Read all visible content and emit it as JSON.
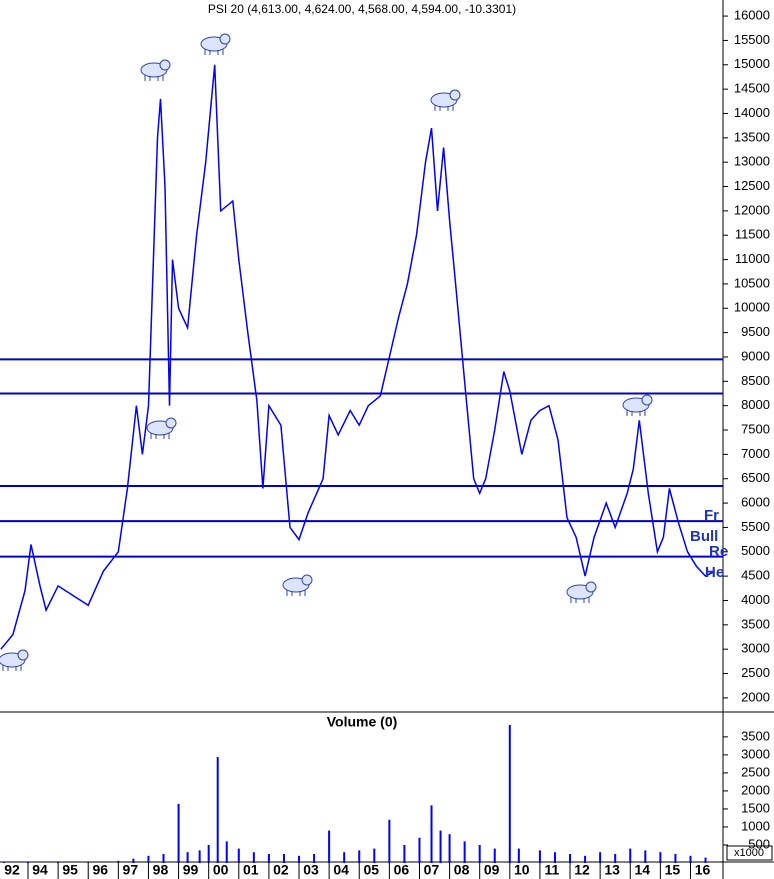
{
  "chart_data": [
    {
      "type": "line",
      "title": "PSI 20 (4,613.00, 4,624.00, 4,568.00, 4,594.00, -10.3301)",
      "x": [
        1993.1,
        1993.5,
        1993.9,
        1994.1,
        1994.4,
        1994.6,
        1995.0,
        1995.5,
        1996.0,
        1996.5,
        1997.0,
        1997.3,
        1997.6,
        1997.8,
        1998.0,
        1998.3,
        1998.4,
        1998.55,
        1998.7,
        1998.8,
        1999.0,
        1999.3,
        1999.6,
        1999.9,
        2000.2,
        2000.4,
        2000.8,
        2001.0,
        2001.3,
        2001.6,
        2001.8,
        2002.0,
        2002.4,
        2002.7,
        2003.0,
        2003.3,
        2003.8,
        2004.0,
        2004.3,
        2004.7,
        2005.0,
        2005.3,
        2005.7,
        2006.0,
        2006.3,
        2006.6,
        2006.9,
        2007.2,
        2007.4,
        2007.6,
        2007.8,
        2008.0,
        2008.2,
        2008.5,
        2008.8,
        2009.0,
        2009.2,
        2009.5,
        2009.8,
        2010.0,
        2010.4,
        2010.7,
        2011.0,
        2011.3,
        2011.6,
        2011.9,
        2012.2,
        2012.5,
        2012.8,
        2013.2,
        2013.5,
        2013.9,
        2014.1,
        2014.3,
        2014.6,
        2014.9,
        2015.1,
        2015.3,
        2015.6,
        2015.9,
        2016.2,
        2016.5,
        2016.8
      ],
      "values": [
        3000,
        3300,
        4200,
        5150,
        4300,
        3800,
        4300,
        4100,
        3900,
        4600,
        5000,
        6300,
        8000,
        7000,
        8000,
        13500,
        14300,
        12500,
        8000,
        11000,
        10000,
        9600,
        11500,
        13000,
        15000,
        12000,
        12200,
        11000,
        9500,
        8100,
        6300,
        8000,
        7600,
        5500,
        5250,
        5800,
        6500,
        7800,
        7400,
        7900,
        7600,
        8000,
        8200,
        9000,
        9800,
        10500,
        11500,
        13000,
        13700,
        12000,
        13300,
        11800,
        10500,
        8500,
        6500,
        6200,
        6500,
        7500,
        8700,
        8300,
        7000,
        7700,
        7900,
        8000,
        7300,
        5700,
        5300,
        4500,
        5300,
        6000,
        5500,
        6200,
        6700,
        7700,
        6200,
        5000,
        5300,
        6300,
        5600,
        5000,
        4700,
        4500,
        4600
      ],
      "color": "#0000ff",
      "hlines": [
        8950,
        8250,
        6350,
        5630,
        4900
      ],
      "annotations": [
        "Fr",
        "Bull",
        "Re",
        "He"
      ],
      "ylim": [
        1710,
        16330
      ],
      "yticks": [
        2000,
        2500,
        3000,
        3500,
        4000,
        4500,
        5000,
        5500,
        6000,
        6500,
        7000,
        7500,
        8000,
        8500,
        9000,
        9500,
        10000,
        10500,
        11000,
        11500,
        12000,
        12500,
        13000,
        13500,
        14000,
        14500,
        15000,
        15500,
        16000
      ],
      "xlim": [
        1993.07,
        2017.08
      ]
    },
    {
      "type": "bar",
      "title": "Volume (0)",
      "x": [
        1993.2,
        1994.0,
        1995.0,
        1996.0,
        1997.0,
        1997.5,
        1998.0,
        1998.5,
        1999.0,
        1999.3,
        1999.7,
        2000.0,
        2000.3,
        2000.6,
        2001.0,
        2001.5,
        2002.0,
        2002.5,
        2003.0,
        2003.5,
        2004.0,
        2004.5,
        2005.0,
        2005.5,
        2006.0,
        2006.5,
        2007.0,
        2007.4,
        2007.7,
        2008.0,
        2008.5,
        2009.0,
        2009.5,
        2010.0,
        2010.3,
        2011.0,
        2011.5,
        2012.0,
        2012.5,
        2013.0,
        2013.5,
        2014.0,
        2014.5,
        2015.0,
        2015.5,
        2016.0,
        2016.5
      ],
      "values": [
        20,
        40,
        30,
        40,
        60,
        120,
        200,
        250,
        1640,
        300,
        350,
        500,
        2940,
        600,
        400,
        300,
        250,
        250,
        200,
        250,
        900,
        300,
        350,
        400,
        1200,
        500,
        700,
        1600,
        900,
        800,
        600,
        500,
        400,
        3830,
        400,
        350,
        300,
        250,
        200,
        300,
        250,
        400,
        350,
        300,
        250,
        200,
        150
      ],
      "color": "#0000ff",
      "unit_label": "x1000",
      "ylim": [
        0,
        4190
      ],
      "yticks": [
        500,
        1000,
        1500,
        2000,
        2500,
        3000,
        3500
      ],
      "xlim": [
        1993.07,
        2017.08
      ],
      "xticks": [
        {
          "value": 1992,
          "label": "92"
        },
        {
          "value": 1994,
          "label": "94"
        },
        {
          "value": 1995,
          "label": "95"
        },
        {
          "value": 1996,
          "label": "96"
        },
        {
          "value": 1997,
          "label": "97"
        },
        {
          "value": 1998,
          "label": "98"
        },
        {
          "value": 1999,
          "label": "99"
        },
        {
          "value": 2000,
          "label": "00"
        },
        {
          "value": 2001,
          "label": "01"
        },
        {
          "value": 2002,
          "label": "02"
        },
        {
          "value": 2003,
          "label": "03"
        },
        {
          "value": 2004,
          "label": "04"
        },
        {
          "value": 2005,
          "label": "05"
        },
        {
          "value": 2006,
          "label": "06"
        },
        {
          "value": 2007,
          "label": "07"
        },
        {
          "value": 2008,
          "label": "08"
        },
        {
          "value": 2009,
          "label": "09"
        },
        {
          "value": 2010,
          "label": "10"
        },
        {
          "value": 2011,
          "label": "11"
        },
        {
          "value": 2012,
          "label": "12"
        },
        {
          "value": 2013,
          "label": "13"
        },
        {
          "value": 2014,
          "label": "14"
        },
        {
          "value": 2015,
          "label": "15"
        },
        {
          "value": 2016,
          "label": "16"
        }
      ]
    }
  ]
}
